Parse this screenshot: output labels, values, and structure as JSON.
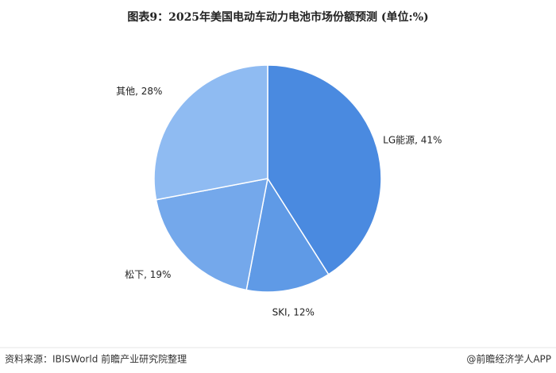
{
  "chart_data": {
    "type": "pie",
    "title": "图表9：2025年美国电动车动力电池市场份额预测 (单位:%)",
    "values": [
      41,
      12,
      19,
      28
    ],
    "value_labels": [
      "LG能源, 41%",
      "SKI, 12%",
      "松下, 19%",
      "其他, 28%"
    ],
    "colors": [
      "#4a8ae0",
      "#5f9ae6",
      "#74a8eb",
      "#8fbbf2"
    ]
  },
  "footer": {
    "source": "资料来源：IBISWorld 前瞻产业研究院整理",
    "brand": "@前瞻经济学人APP"
  }
}
